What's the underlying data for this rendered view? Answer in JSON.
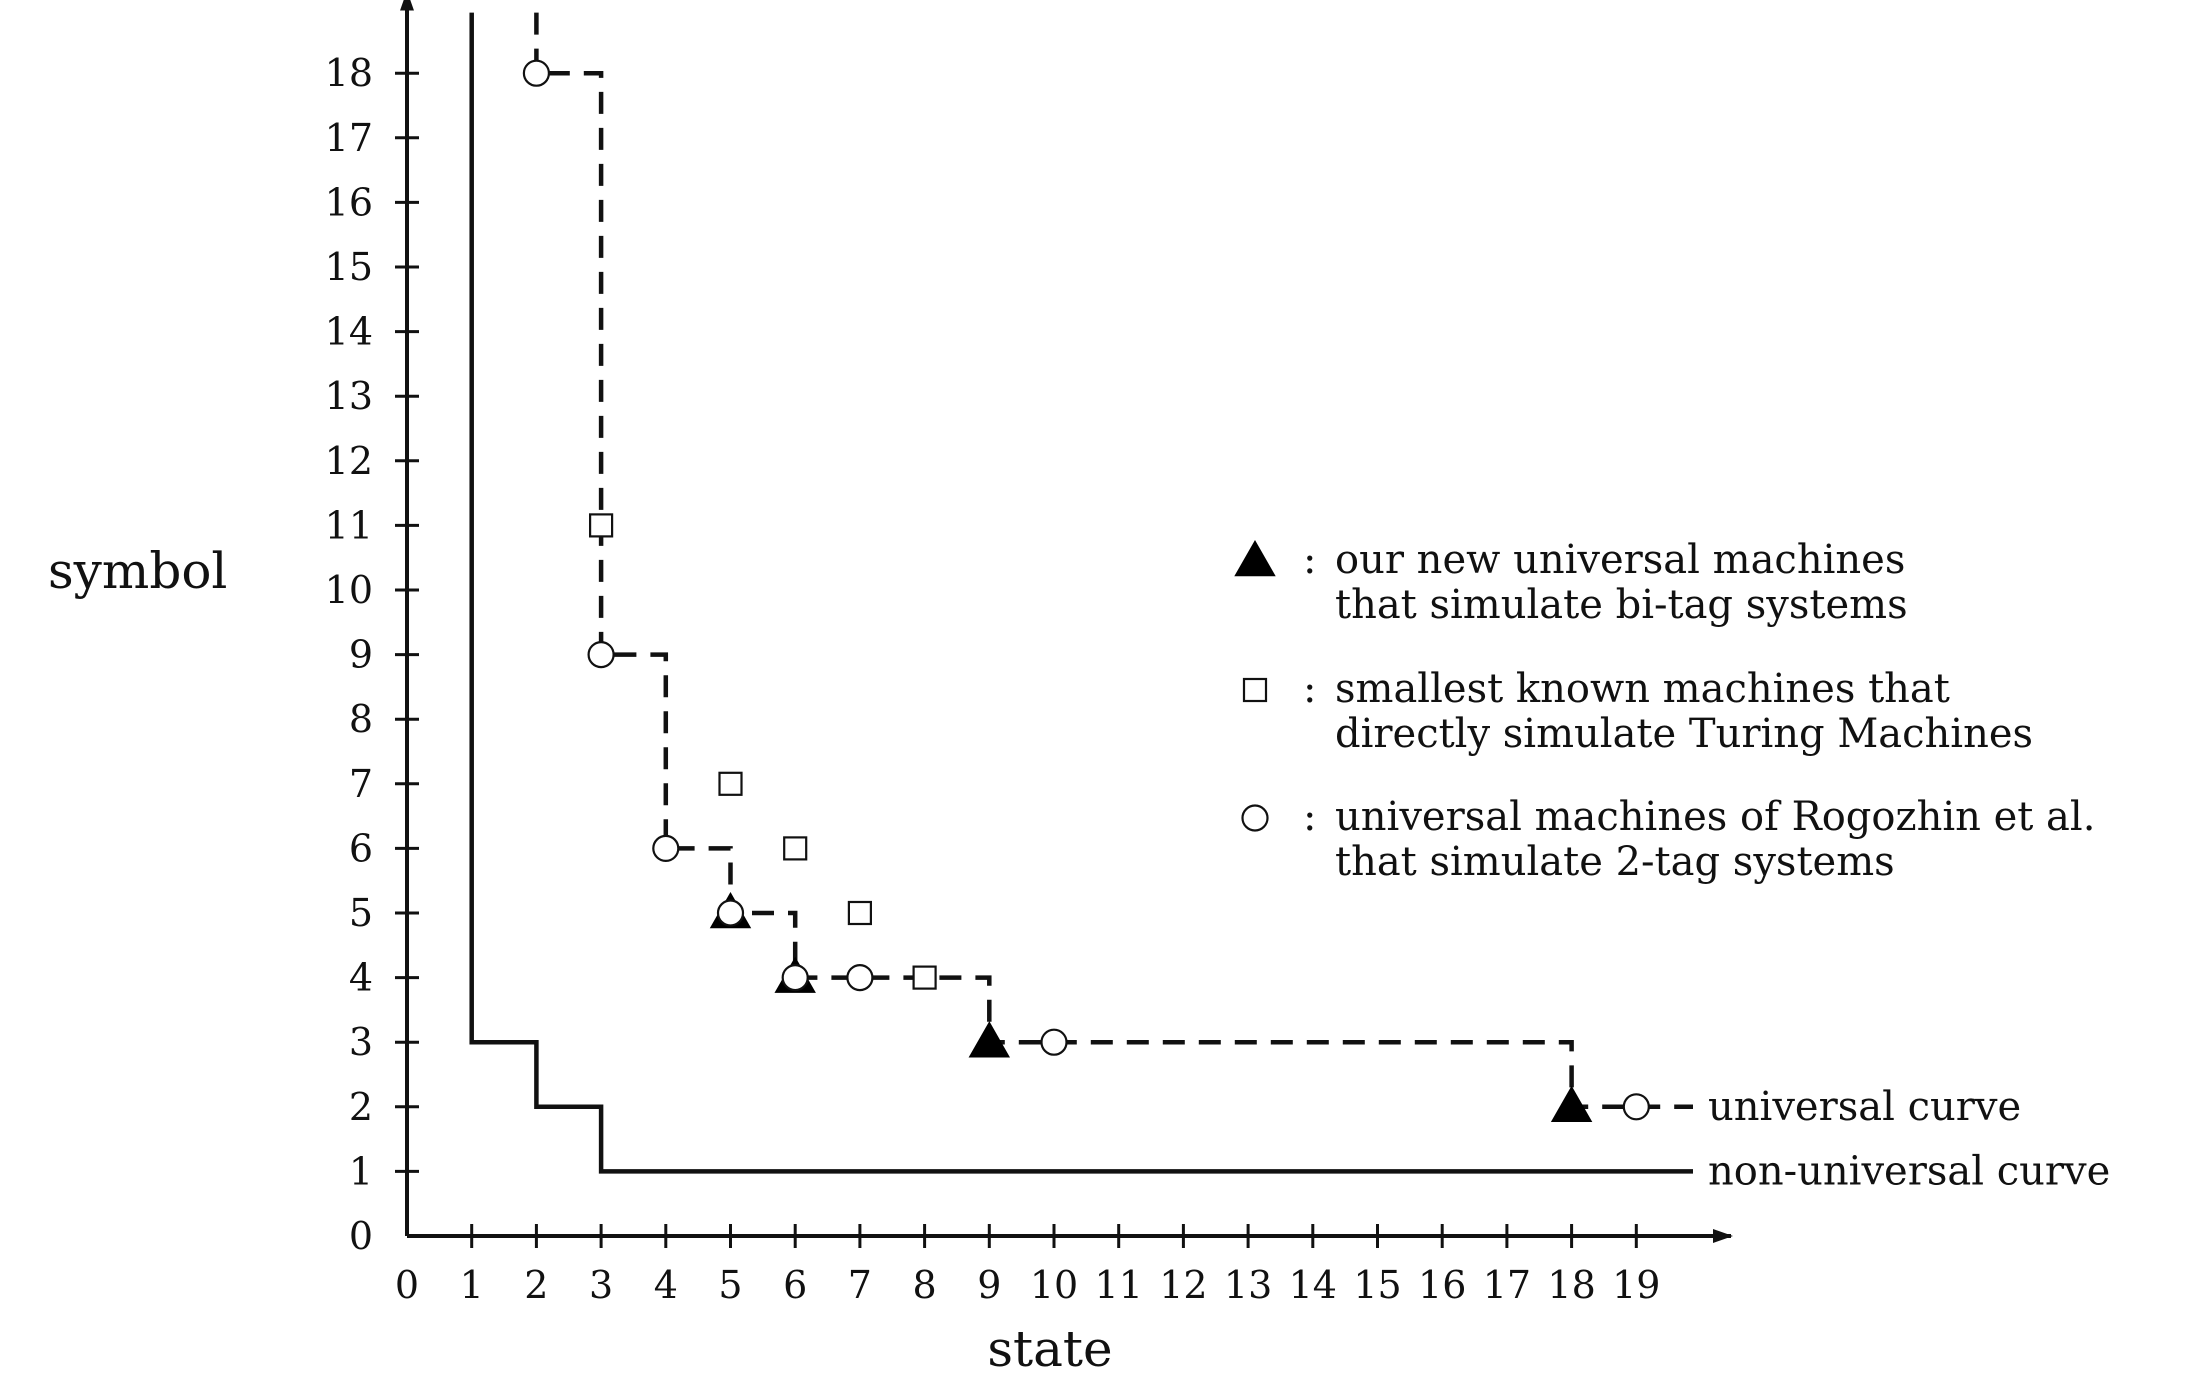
{
  "chart_data": {
    "type": "scatter",
    "xlabel": "state",
    "ylabel": "symbol",
    "xlim": [
      0,
      20
    ],
    "ylim": [
      0,
      19
    ],
    "x_ticks": [
      "0",
      "1",
      "2",
      "3",
      "4",
      "5",
      "6",
      "7",
      "8",
      "9",
      "10",
      "11",
      "12",
      "13",
      "14",
      "15",
      "16",
      "17",
      "18",
      "19"
    ],
    "y_ticks": [
      "0",
      "1",
      "2",
      "3",
      "4",
      "5",
      "6",
      "7",
      "8",
      "9",
      "10",
      "11",
      "12",
      "13",
      "14",
      "15",
      "16",
      "17",
      "18"
    ],
    "legend_placement": "right",
    "series": [
      {
        "name": "our new universal machines that simulate bi-tag systems",
        "legend_lines": [
          "our new universal machines",
          "that simulate bi-tag systems"
        ],
        "marker": "filled-triangle",
        "points": [
          [
            5,
            5
          ],
          [
            6,
            4
          ],
          [
            9,
            3
          ],
          [
            18,
            2
          ]
        ]
      },
      {
        "name": "smallest known machines that directly simulate Turing Machines",
        "legend_lines": [
          "smallest known machines that",
          "directly simulate Turing Machines"
        ],
        "marker": "open-square",
        "points": [
          [
            3,
            11
          ],
          [
            5,
            7
          ],
          [
            6,
            6
          ],
          [
            7,
            5
          ],
          [
            8,
            4
          ]
        ]
      },
      {
        "name": "universal machines of Rogozhin et al. that simulate 2-tag systems",
        "legend_lines": [
          "universal machines of Rogozhin et al.",
          "that simulate 2-tag systems"
        ],
        "marker": "open-circle",
        "points": [
          [
            2,
            18
          ],
          [
            3,
            9
          ],
          [
            4,
            6
          ],
          [
            5,
            5
          ],
          [
            6,
            4
          ],
          [
            7,
            4
          ],
          [
            10,
            3
          ],
          [
            19,
            2
          ]
        ]
      }
    ],
    "curves": [
      {
        "name": "universal curve",
        "style": "dashed",
        "points": [
          [
            2,
            19
          ],
          [
            2,
            18
          ],
          [
            3,
            18
          ],
          [
            3,
            9
          ],
          [
            4,
            9
          ],
          [
            4,
            6
          ],
          [
            5,
            6
          ],
          [
            5,
            5
          ],
          [
            6,
            5
          ],
          [
            6,
            4
          ],
          [
            9,
            4
          ],
          [
            9,
            3
          ],
          [
            18,
            3
          ],
          [
            18,
            2
          ],
          [
            20,
            2
          ]
        ]
      },
      {
        "name": "non-universal curve",
        "style": "solid",
        "points": [
          [
            1,
            19
          ],
          [
            1,
            3
          ],
          [
            2,
            3
          ],
          [
            2,
            2
          ],
          [
            3,
            2
          ],
          [
            3,
            1
          ],
          [
            20,
            1
          ]
        ]
      }
    ],
    "legend_separator": ":"
  }
}
